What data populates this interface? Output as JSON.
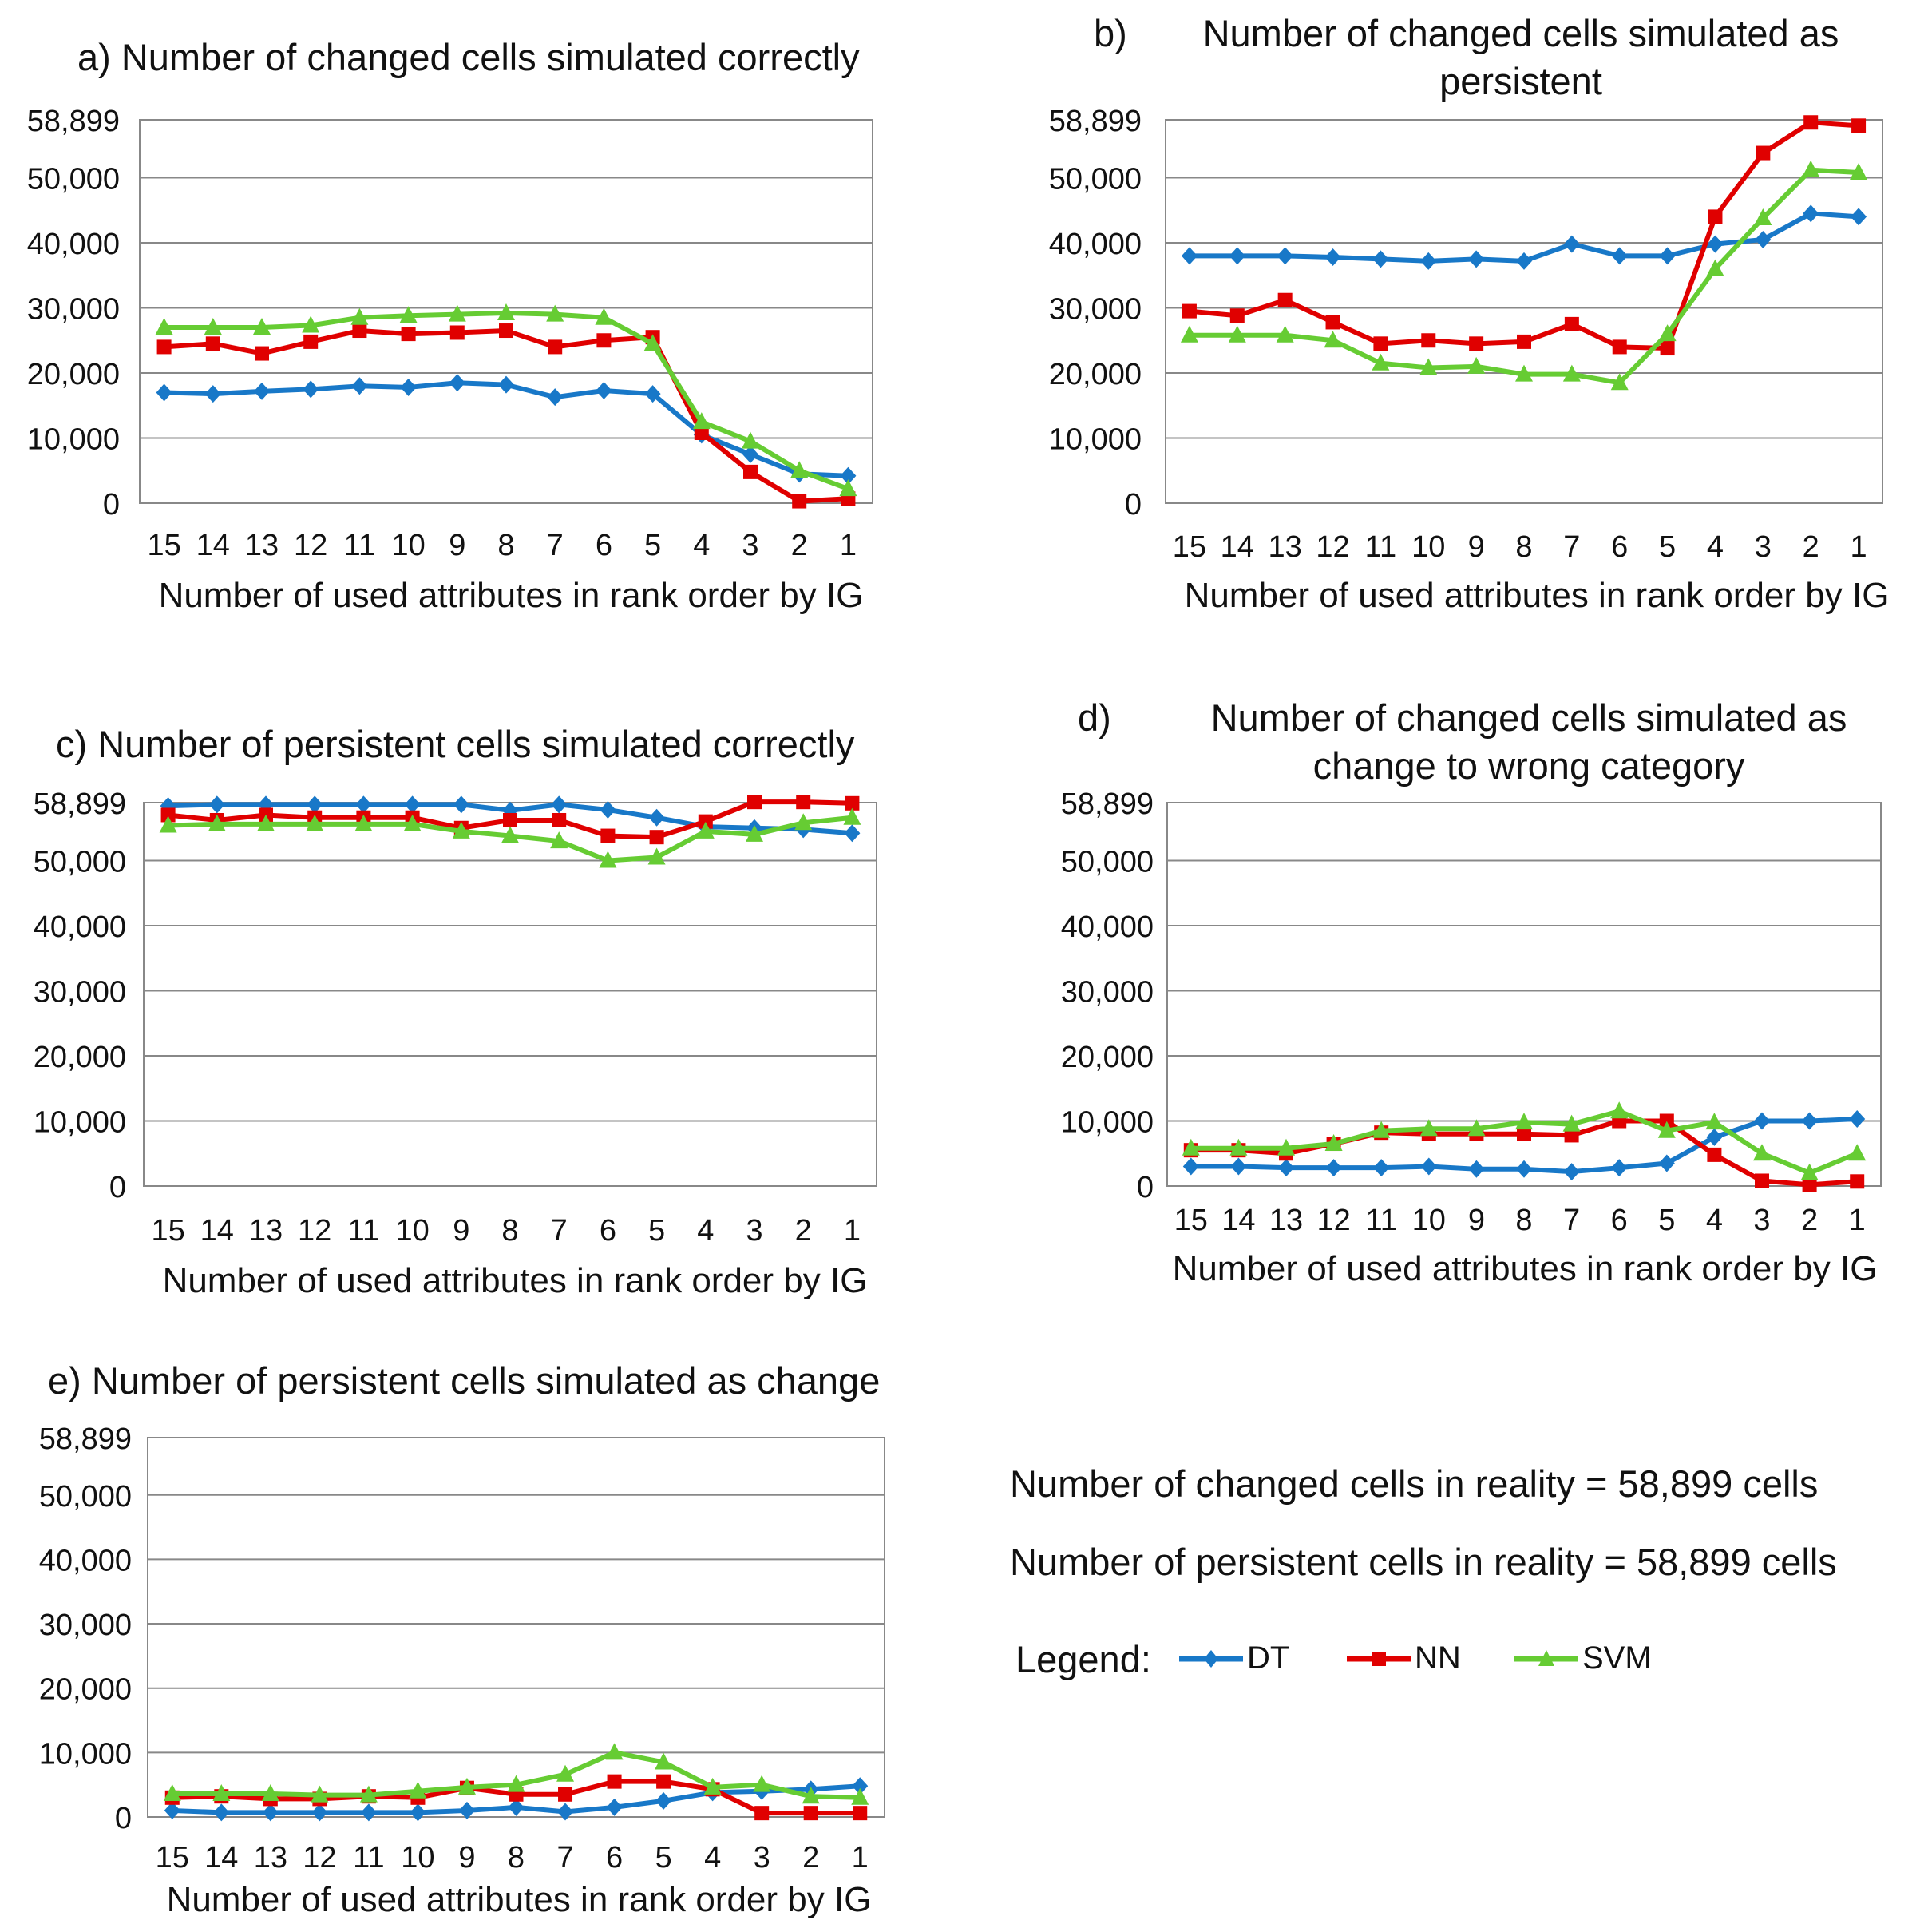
{
  "chart_data": [
    {
      "type": "line",
      "panel": "a)",
      "title": "Number of changed cells simulated correctly",
      "xlabel": "Number of  used attributes in rank order by IG",
      "ylabel": "",
      "categories": [
        "15",
        "14",
        "13",
        "12",
        "11",
        "10",
        "9",
        "8",
        "7",
        "6",
        "5",
        "4",
        "3",
        "2",
        "1"
      ],
      "yticks": [
        "0",
        "10,000",
        "20,000",
        "30,000",
        "40,000",
        "50,000",
        "58,899"
      ],
      "ytick_values": [
        0,
        10000,
        20000,
        30000,
        40000,
        50000,
        58899
      ],
      "ylim": [
        0,
        58899
      ],
      "series": [
        {
          "name": "DT",
          "values": [
            17000,
            16800,
            17200,
            17500,
            18000,
            17800,
            18500,
            18200,
            16300,
            17300,
            16800,
            10500,
            7500,
            4500,
            4200
          ]
        },
        {
          "name": "NN",
          "values": [
            24000,
            24500,
            23000,
            24800,
            26500,
            26000,
            26200,
            26500,
            24000,
            25000,
            25500,
            10800,
            4800,
            300,
            700
          ]
        },
        {
          "name": "SVM",
          "values": [
            27000,
            27000,
            27000,
            27300,
            28500,
            28800,
            29000,
            29200,
            29000,
            28500,
            24500,
            12500,
            9500,
            5000,
            2200
          ]
        }
      ]
    },
    {
      "type": "line",
      "panel": "b)",
      "title": "Number of changed cells simulated as persistent",
      "xlabel": "Number of  used attributes in rank order by IG",
      "ylabel": "",
      "categories": [
        "15",
        "14",
        "13",
        "12",
        "11",
        "10",
        "9",
        "8",
        "7",
        "6",
        "5",
        "4",
        "3",
        "2",
        "1"
      ],
      "yticks": [
        "0",
        "10,000",
        "20,000",
        "30,000",
        "40,000",
        "50,000",
        "58,899"
      ],
      "ytick_values": [
        0,
        10000,
        20000,
        30000,
        40000,
        50000,
        58899
      ],
      "ylim": [
        0,
        58899
      ],
      "series": [
        {
          "name": "DT",
          "values": [
            38000,
            38000,
            38000,
            37800,
            37500,
            37200,
            37500,
            37200,
            39800,
            38000,
            38000,
            39800,
            40500,
            44500,
            44000
          ]
        },
        {
          "name": "NN",
          "values": [
            29500,
            28800,
            31200,
            27800,
            24500,
            25000,
            24500,
            24800,
            27500,
            24000,
            23800,
            44000,
            53800,
            58500,
            58000
          ]
        },
        {
          "name": "SVM",
          "values": [
            25800,
            25800,
            25800,
            25000,
            21500,
            20800,
            21000,
            19800,
            19800,
            18500,
            26000,
            36000,
            43800,
            51200,
            50800
          ]
        }
      ]
    },
    {
      "type": "line",
      "panel": "c)",
      "title": "Number of persistent cells simulated correctly",
      "xlabel": "Number of  used attributes in rank order by IG",
      "ylabel": "",
      "categories": [
        "15",
        "14",
        "13",
        "12",
        "11",
        "10",
        "9",
        "8",
        "7",
        "6",
        "5",
        "4",
        "3",
        "2",
        "1"
      ],
      "yticks": [
        "0",
        "10,000",
        "20,000",
        "30,000",
        "40,000",
        "50,000",
        "58,899"
      ],
      "ytick_values": [
        0,
        10000,
        20000,
        30000,
        40000,
        50000,
        58899
      ],
      "ylim": [
        0,
        58899
      ],
      "series": [
        {
          "name": "DT",
          "values": [
            58400,
            58600,
            58600,
            58600,
            58600,
            58600,
            58600,
            57700,
            58600,
            57800,
            56600,
            55200,
            55000,
            54800,
            54200
          ]
        },
        {
          "name": "NN",
          "values": [
            57000,
            56200,
            57000,
            56600,
            56600,
            56600,
            55000,
            56200,
            56200,
            53800,
            53600,
            56000,
            59000,
            59000,
            58800
          ]
        },
        {
          "name": "SVM",
          "values": [
            55400,
            55600,
            55600,
            55600,
            55600,
            55600,
            54500,
            53800,
            53000,
            50000,
            50500,
            54500,
            54000,
            55800,
            56600
          ]
        }
      ]
    },
    {
      "type": "line",
      "panel": "d)",
      "title": "Number of changed cells simulated as change to wrong category",
      "xlabel": "Number of  used attributes in rank order by IG",
      "ylabel": "",
      "categories": [
        "15",
        "14",
        "13",
        "12",
        "11",
        "10",
        "9",
        "8",
        "7",
        "6",
        "5",
        "4",
        "3",
        "2",
        "1"
      ],
      "yticks": [
        "0",
        "10,000",
        "20,000",
        "30,000",
        "40,000",
        "50,000",
        "58,899"
      ],
      "ytick_values": [
        0,
        10000,
        20000,
        30000,
        40000,
        50000,
        58899
      ],
      "ylim": [
        0,
        58899
      ],
      "series": [
        {
          "name": "DT",
          "values": [
            3000,
            3000,
            2800,
            2800,
            2800,
            3000,
            2600,
            2600,
            2200,
            2800,
            3500,
            7500,
            10000,
            10000,
            10300
          ]
        },
        {
          "name": "NN",
          "values": [
            5500,
            5500,
            5000,
            6500,
            8200,
            8000,
            8000,
            8000,
            7800,
            10000,
            10000,
            4800,
            800,
            200,
            700
          ]
        },
        {
          "name": "SVM",
          "values": [
            5800,
            5800,
            5800,
            6500,
            8500,
            8800,
            8800,
            9800,
            9500,
            11500,
            8500,
            9800,
            5000,
            2000,
            5000
          ]
        }
      ]
    },
    {
      "type": "line",
      "panel": "e)",
      "title": "Number of persistent cells simulated as change",
      "xlabel": "Number of  used attributes in rank order by IG",
      "ylabel": "",
      "categories": [
        "15",
        "14",
        "13",
        "12",
        "11",
        "10",
        "9",
        "8",
        "7",
        "6",
        "5",
        "4",
        "3",
        "2",
        "1"
      ],
      "yticks": [
        "0",
        "10,000",
        "20,000",
        "30,000",
        "40,000",
        "50,000",
        "58,899"
      ],
      "ytick_values": [
        0,
        10000,
        20000,
        30000,
        40000,
        50000,
        58899
      ],
      "ylim": [
        0,
        58899
      ],
      "series": [
        {
          "name": "DT",
          "values": [
            1000,
            700,
            700,
            700,
            700,
            700,
            1000,
            1500,
            800,
            1500,
            2500,
            3800,
            4000,
            4300,
            4800
          ]
        },
        {
          "name": "NN",
          "values": [
            3000,
            3200,
            2800,
            2800,
            3200,
            3000,
            4500,
            3500,
            3500,
            5500,
            5500,
            4300,
            600,
            600,
            600
          ]
        },
        {
          "name": "SVM",
          "values": [
            3600,
            3600,
            3600,
            3400,
            3400,
            4000,
            4600,
            5000,
            6600,
            10000,
            8500,
            4600,
            5000,
            3200,
            3000
          ]
        }
      ]
    }
  ],
  "series_colors": {
    "DT": "#1878c8",
    "NN": "#e00000",
    "SVM": "#66cc33"
  },
  "series_markers": {
    "DT": "diamond",
    "NN": "square",
    "SVM": "triangle"
  },
  "notes": {
    "changed": "Number of changed cells in reality = 58,899 cells",
    "persistent": "Number of persistent cells in reality = 58,899 cells"
  },
  "legend": {
    "title": "Legend:",
    "items": [
      "DT",
      "NN",
      "SVM"
    ]
  }
}
